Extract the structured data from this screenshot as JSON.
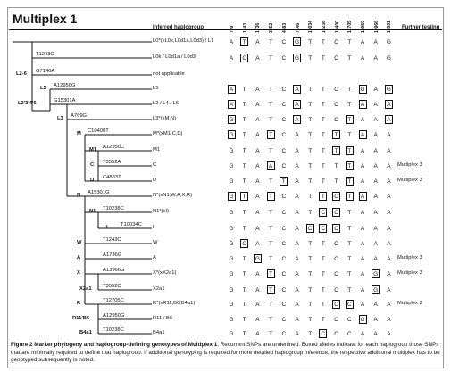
{
  "title": "Multiplex 1",
  "header": {
    "inferred": "Inferred haplogroup",
    "further": "Further testing"
  },
  "snp_columns": [
    "709",
    "1243",
    "1736",
    "3552",
    "4883",
    "7146",
    "10034",
    "10238",
    "10400",
    "12705",
    "12950",
    "13966",
    "15301"
  ],
  "rows": [
    {
      "label": "L0*(xL0k,L0d1a,L0d3) / L1",
      "alleles": "ATATCGTTCTAAG",
      "boxed": [
        1,
        5
      ],
      "further": ""
    },
    {
      "label": "L0k / L0d1a / L0d3",
      "alleles": "ACATCGTTCTAAG",
      "boxed": [
        1,
        5
      ],
      "further": ""
    },
    {
      "label": "not applicable",
      "alleles": "",
      "boxed": [],
      "further": ""
    },
    {
      "label": "L5",
      "alleles": "ATATCATTCTGAG",
      "boxed": [
        0,
        5,
        10,
        12
      ],
      "further": ""
    },
    {
      "label": "L2 / L4 / L6",
      "alleles": "ATATCATTCTAAA",
      "boxed": [
        0,
        5,
        10,
        12
      ],
      "further": ""
    },
    {
      "label": "L3*(xM,N)",
      "alleles": "GTATCATTCTAAA",
      "boxed": [
        0,
        5,
        9,
        12
      ],
      "further": ""
    },
    {
      "label": "M*(xM1,C,D)",
      "alleles": "GTATCATTTTAAA",
      "boxed": [
        0,
        3,
        8,
        10
      ],
      "further": ""
    },
    {
      "label": "M1",
      "alleles": "GTATCATTTTAAA",
      "boxed": [
        8,
        9
      ],
      "further": ""
    },
    {
      "label": "C",
      "alleles": "GTAACATTTTAAA",
      "boxed": [
        3,
        9
      ],
      "further": "Multiplex 3"
    },
    {
      "label": "D",
      "alleles": "GTATTATTTTAAA",
      "boxed": [
        4,
        9
      ],
      "further": "Multiplex 3"
    },
    {
      "label": "N*(xN1,W,A,X,R)",
      "alleles": "GTATCATTCTAAA",
      "boxed": [
        0,
        1,
        3,
        7,
        8,
        9,
        10
      ],
      "further": ""
    },
    {
      "label": "N1*(xI)",
      "alleles": "GTATCATCCTAAA",
      "boxed": [
        7,
        8
      ],
      "further": ""
    },
    {
      "label": "I",
      "alleles": "GTATCACCCTAAA",
      "boxed": [
        6,
        7,
        8
      ],
      "further": ""
    },
    {
      "label": "W",
      "alleles": "GCATCATTCTAAA",
      "boxed": [
        1
      ],
      "further": ""
    },
    {
      "label": "A",
      "alleles": "GTGTCATTCTAAA",
      "boxed": [
        2
      ],
      "further": "Multiplex 3"
    },
    {
      "label": "X*(xX2a1)",
      "alleles": "GTATCATTCTAGA",
      "boxed": [
        3,
        11
      ],
      "further": "Multiplex 3"
    },
    {
      "label": "X2a1",
      "alleles": "GTATCATTCTAGA",
      "boxed": [
        3,
        11
      ],
      "further": ""
    },
    {
      "label": "R*(xR11,B6,B4a1)",
      "alleles": "GTATCATTCCAAA",
      "boxed": [
        8,
        9
      ],
      "further": "Multiplex 2"
    },
    {
      "label": "R11 / B6",
      "alleles": "GTATCATTCCGAA",
      "boxed": [
        10
      ],
      "further": ""
    },
    {
      "label": "B4a1",
      "alleles": "GTATCATCCCAAA",
      "boxed": [
        7
      ],
      "further": ""
    }
  ],
  "tree": {
    "node_labels": [
      "L2-6",
      "L5",
      "L2'3'4'6",
      "L3",
      "M",
      "M1",
      "C",
      "D",
      "N",
      "N1",
      "I",
      "W",
      "A",
      "X",
      "X2a1",
      "R",
      "R11'B6",
      "B4a1"
    ],
    "mutations": [
      "T1243C",
      "G7146A",
      "A12950G",
      "G15301A",
      "A769G",
      "C10400T",
      "A12950C",
      "T3552A",
      "C4883T",
      "A15301G",
      "T10238C",
      "T10034C",
      "T1243C",
      "A1736G",
      "A13966G",
      "T3552C",
      "T12705C",
      "A12950G",
      "T10238C"
    ]
  },
  "caption": {
    "bold": "Figure 2 Marker phylogeny and haplogroup-defining genotypes of Multiplex 1",
    "text": ". Recurrent SNPs are underlined. Boxed alleles indicate for each haplogroup those SNPs that are minimally required to define that haplogroup. If additional genotyping is required for more detailed haplogroup inference, the respective additional multiplex has to be genotyped subsequently is noted."
  }
}
